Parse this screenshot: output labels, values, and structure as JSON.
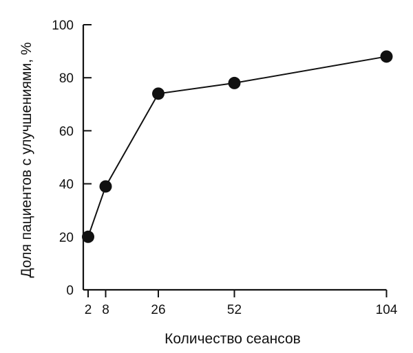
{
  "chart_data": {
    "type": "line",
    "title": "",
    "xlabel": "Количество сеансов",
    "ylabel": "Доля пациентов с улучшениями, %",
    "x": [
      2,
      8,
      26,
      52,
      104
    ],
    "series": [
      {
        "values": [
          20,
          39,
          74,
          78,
          88
        ]
      }
    ],
    "xlim": [
      0,
      104
    ],
    "ylim": [
      0,
      100
    ],
    "xticks": [
      2,
      8,
      26,
      52,
      104
    ],
    "yticks": [
      0,
      20,
      40,
      60,
      80,
      100
    ],
    "grid": false,
    "marker": "filled-circle",
    "color": "#111111"
  }
}
